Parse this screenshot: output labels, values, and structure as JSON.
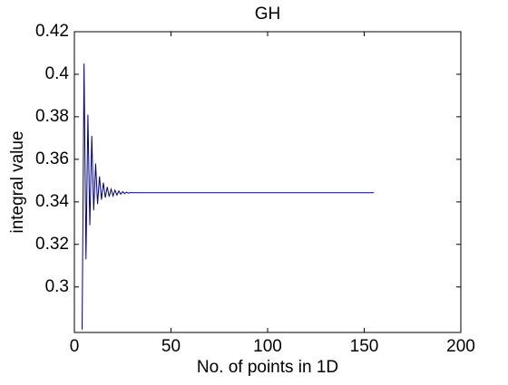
{
  "chart_data": {
    "type": "line",
    "title": "GH",
    "xlabel": "No. of points in 1D",
    "ylabel": "integral value",
    "x": [
      4,
      5,
      6,
      7,
      8,
      9,
      10,
      11,
      12,
      13,
      14,
      15,
      16,
      17,
      18,
      19,
      20,
      21,
      22,
      23,
      24,
      25,
      26,
      27,
      28,
      29,
      30,
      40,
      50,
      60,
      70,
      80,
      90,
      100,
      110,
      120,
      130,
      140,
      150,
      155
    ],
    "series": [
      {
        "color": "#00007f",
        "values": [
          0.28,
          0.405,
          0.313,
          0.381,
          0.329,
          0.371,
          0.336,
          0.358,
          0.339,
          0.352,
          0.341,
          0.349,
          0.342,
          0.347,
          0.3425,
          0.346,
          0.3428,
          0.3455,
          0.3432,
          0.3451,
          0.3436,
          0.3448,
          0.3439,
          0.3446,
          0.3441,
          0.3444,
          0.3443,
          0.3443,
          0.3443,
          0.3443,
          0.3443,
          0.3443,
          0.3443,
          0.3443,
          0.3443,
          0.3443,
          0.3443,
          0.3443,
          0.3443,
          0.3443
        ]
      }
    ],
    "xlim": [
      0,
      200
    ],
    "xticks": [
      0,
      50,
      100,
      150,
      200
    ],
    "ylim": [
      0.2786,
      0.42
    ],
    "yticks": [
      0.3,
      0.32,
      0.34,
      0.36,
      0.38,
      0.4,
      0.42
    ]
  }
}
